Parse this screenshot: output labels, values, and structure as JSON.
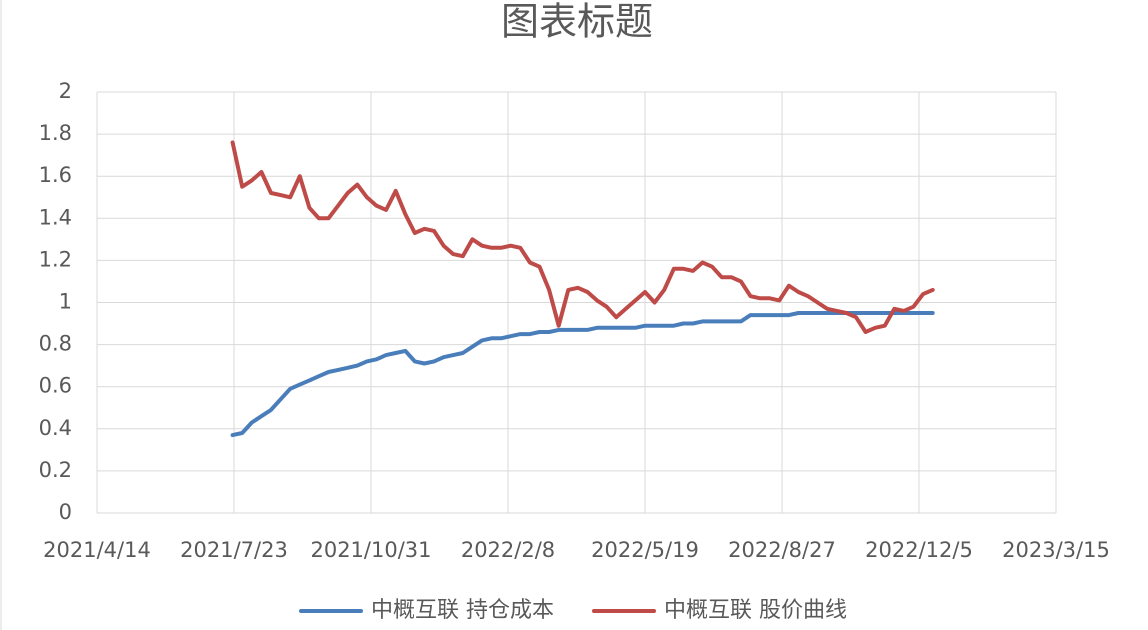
{
  "chart_data": {
    "type": "line",
    "title": "图表标题",
    "x": [
      "2021/7/22",
      "2021/7/29",
      "2021/8/5",
      "2021/8/12",
      "2021/8/19",
      "2021/8/26",
      "2021/9/2",
      "2021/9/9",
      "2021/9/16",
      "2021/9/23",
      "2021/9/30",
      "2021/10/7",
      "2021/10/14",
      "2021/10/21",
      "2021/10/28",
      "2021/11/4",
      "2021/11/11",
      "2021/11/18",
      "2021/11/25",
      "2021/12/2",
      "2021/12/9",
      "2021/12/16",
      "2021/12/23",
      "2021/12/30",
      "2022/1/6",
      "2022/1/13",
      "2022/1/20",
      "2022/1/27",
      "2022/2/3",
      "2022/2/10",
      "2022/2/17",
      "2022/2/24",
      "2022/3/3",
      "2022/3/10",
      "2022/3/17",
      "2022/3/24",
      "2022/3/31",
      "2022/4/7",
      "2022/4/14",
      "2022/4/21",
      "2022/4/28",
      "2022/5/5",
      "2022/5/12",
      "2022/5/19",
      "2022/5/26",
      "2022/6/2",
      "2022/6/9",
      "2022/6/16",
      "2022/6/23",
      "2022/6/30",
      "2022/7/7",
      "2022/7/14",
      "2022/7/21",
      "2022/7/28",
      "2022/8/4",
      "2022/8/11",
      "2022/8/18",
      "2022/8/25",
      "2022/9/1",
      "2022/9/8",
      "2022/9/15",
      "2022/9/22",
      "2022/9/29",
      "2022/10/6",
      "2022/10/13",
      "2022/10/20",
      "2022/10/27",
      "2022/11/3",
      "2022/11/10",
      "2022/11/17",
      "2022/11/24",
      "2022/12/1",
      "2022/12/8",
      "2022/12/15"
    ],
    "series": [
      {
        "name": "中概互联 持仓成本",
        "color": "#4a7ebb",
        "values": [
          0.37,
          0.38,
          0.43,
          0.46,
          0.49,
          0.54,
          0.59,
          0.61,
          0.63,
          0.65,
          0.67,
          0.68,
          0.69,
          0.7,
          0.72,
          0.73,
          0.75,
          0.76,
          0.77,
          0.72,
          0.71,
          0.72,
          0.74,
          0.75,
          0.76,
          0.79,
          0.82,
          0.83,
          0.83,
          0.84,
          0.85,
          0.85,
          0.86,
          0.86,
          0.87,
          0.87,
          0.87,
          0.87,
          0.88,
          0.88,
          0.88,
          0.88,
          0.88,
          0.89,
          0.89,
          0.89,
          0.89,
          0.9,
          0.9,
          0.91,
          0.91,
          0.91,
          0.91,
          0.91,
          0.94,
          0.94,
          0.94,
          0.94,
          0.94,
          0.95,
          0.95,
          0.95,
          0.95,
          0.95,
          0.95,
          0.95,
          0.95,
          0.95,
          0.95,
          0.95,
          0.95,
          0.95,
          0.95,
          0.95
        ]
      },
      {
        "name": "中概互联 股价曲线",
        "color": "#be4b48",
        "values": [
          1.76,
          1.55,
          1.58,
          1.62,
          1.52,
          1.51,
          1.5,
          1.6,
          1.45,
          1.4,
          1.4,
          1.46,
          1.52,
          1.56,
          1.5,
          1.46,
          1.44,
          1.53,
          1.42,
          1.33,
          1.35,
          1.34,
          1.27,
          1.23,
          1.22,
          1.3,
          1.27,
          1.26,
          1.26,
          1.27,
          1.26,
          1.19,
          1.17,
          1.06,
          0.89,
          1.06,
          1.07,
          1.05,
          1.01,
          0.98,
          0.93,
          0.97,
          1.01,
          1.05,
          1.0,
          1.06,
          1.16,
          1.16,
          1.15,
          1.19,
          1.17,
          1.12,
          1.12,
          1.1,
          1.03,
          1.02,
          1.02,
          1.01,
          1.08,
          1.05,
          1.03,
          1.0,
          0.97,
          0.96,
          0.95,
          0.93,
          0.86,
          0.88,
          0.89,
          0.97,
          0.96,
          0.98,
          1.04,
          1.06
        ]
      }
    ],
    "xlim": [
      "2021/4/14",
      "2023/3/15"
    ],
    "xticks": [
      "2021/4/14",
      "2021/7/23",
      "2021/10/31",
      "2022/2/8",
      "2022/5/19",
      "2022/8/27",
      "2022/12/5",
      "2023/3/15"
    ],
    "ylim": [
      0,
      2
    ],
    "yticks": [
      0,
      0.2,
      0.4,
      0.6,
      0.8,
      1,
      1.2,
      1.4,
      1.6,
      1.8,
      2
    ],
    "grid": true,
    "legend": "bottom"
  }
}
